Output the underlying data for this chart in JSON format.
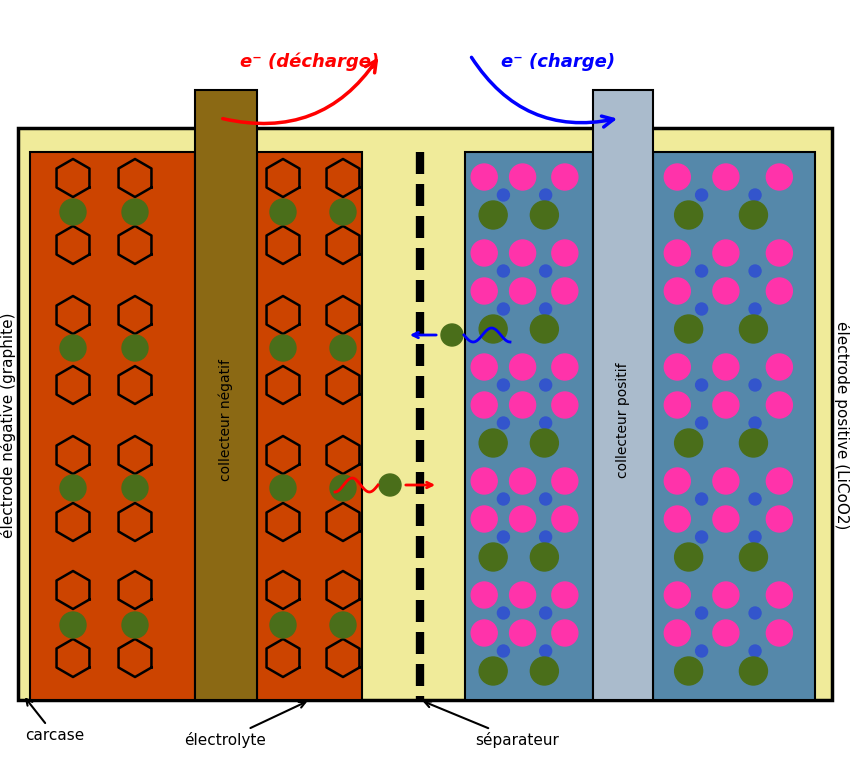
{
  "bg_color": "#f0eb9a",
  "outer_bg": "#ffffff",
  "neg_electrode_color": "#cc4400",
  "pos_electrode_color": "#5588aa",
  "neg_collector_color": "#8B6914",
  "pos_collector_color": "#aabbcc",
  "li_green": "#4a6e1a",
  "co_pink": "#ff33aa",
  "small_blue": "#3355cc",
  "label_neg_electrode": "électrode négative (graphite)",
  "label_pos_electrode": "électrode positive (LiCoO2)",
  "label_neg_collector": "collecteur négatif",
  "label_pos_collector": "collecteur positif",
  "label_carcase": "carcase",
  "label_electrolyte": "électrolyte",
  "label_separator": "séparateur",
  "label_discharge": "e⁻ (décharge)",
  "label_charge": "e⁻ (charge)"
}
